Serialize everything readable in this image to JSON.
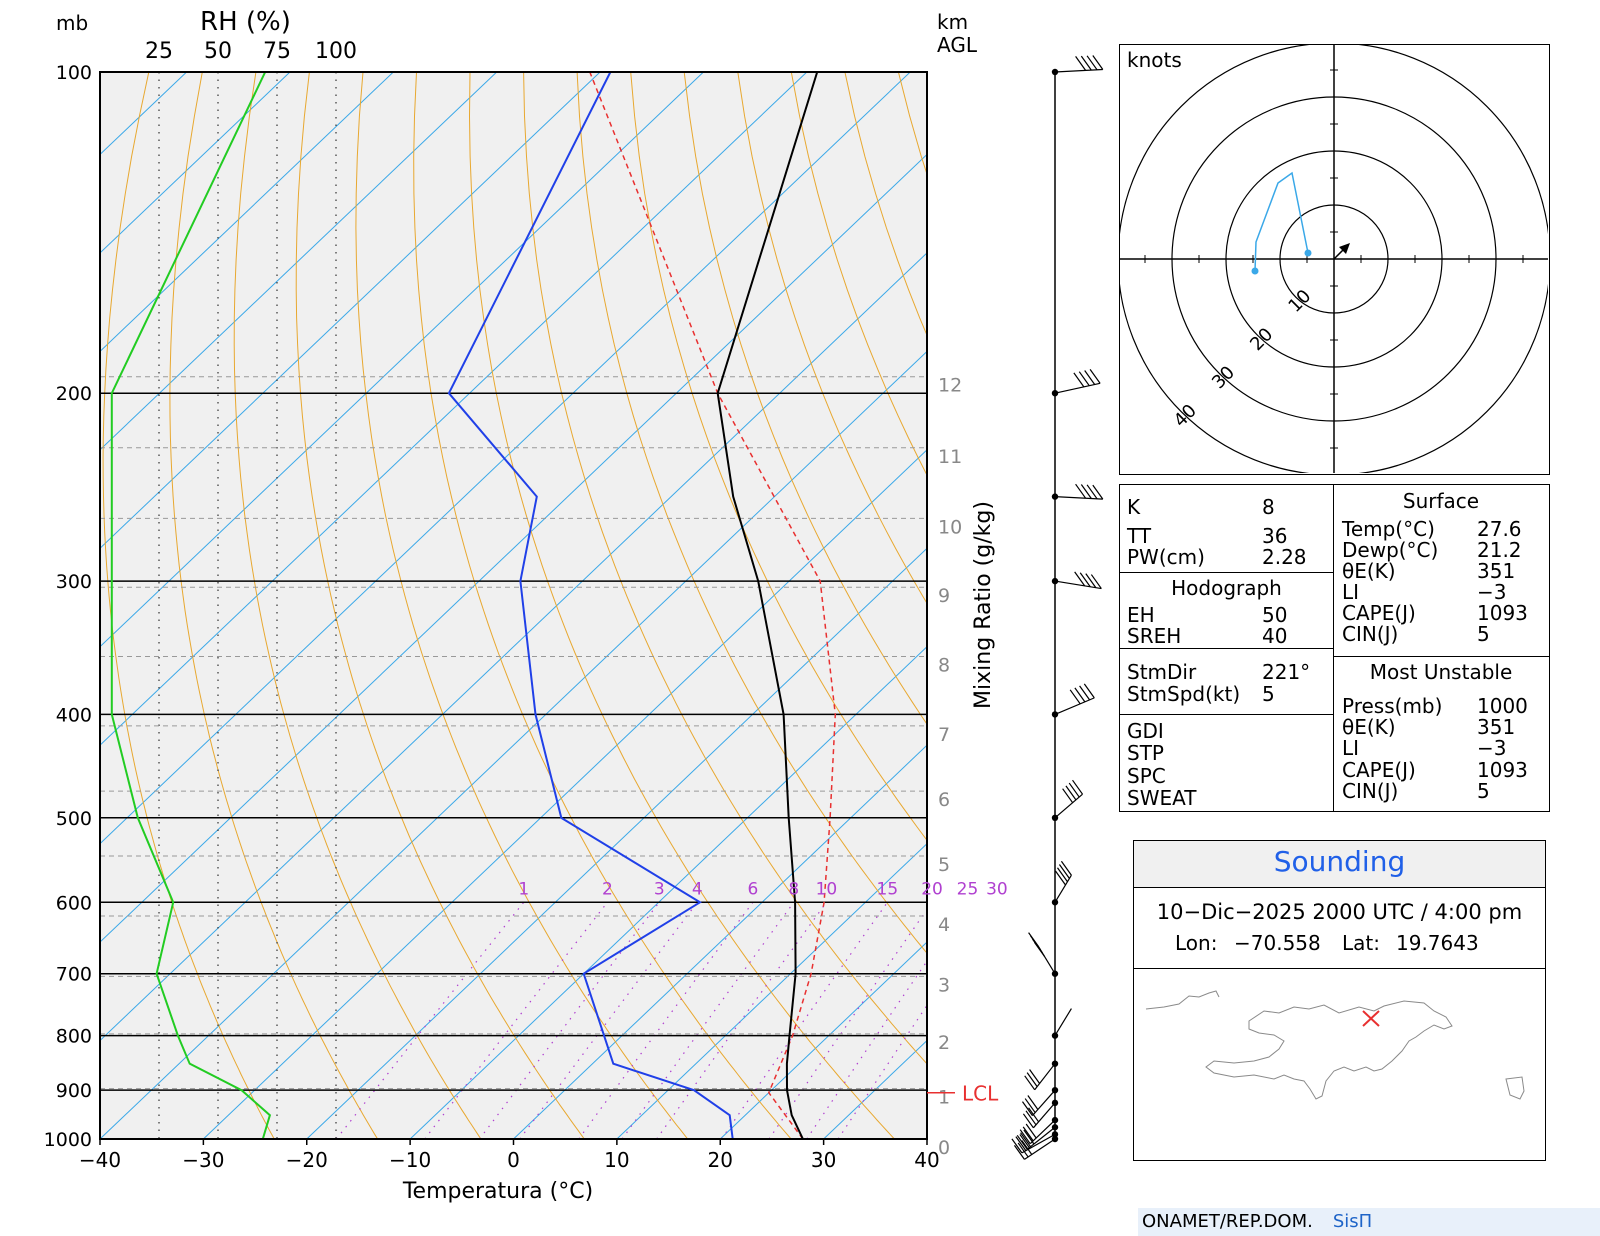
{
  "header": {
    "mb_label": "mb",
    "rh_label": "RH (%)",
    "rh_ticks": [
      "25",
      "50",
      "75",
      "100"
    ],
    "km_label": "km",
    "agl_label": "AGL"
  },
  "chart_data": {
    "type": "skew-t",
    "xlabel": "Temperatura (°C)",
    "y2label": "Mixing Ratio (g/kg)",
    "xlim": [
      -40,
      40
    ],
    "ylim": [
      1000,
      100
    ],
    "temperature_ticks": [
      -40,
      -30,
      -20,
      -10,
      0,
      10,
      20,
      30,
      40
    ],
    "pressure_ticks": [
      100,
      200,
      300,
      400,
      500,
      600,
      700,
      800,
      900,
      1000
    ],
    "height_ticks_km": [
      0,
      1,
      2,
      3,
      4,
      5,
      6,
      7,
      8,
      9,
      10,
      11,
      12
    ],
    "height_pressures": [
      1000,
      897,
      797,
      704,
      618,
      543,
      472,
      410,
      353,
      304,
      262,
      225,
      193
    ],
    "mixing_ratio_lines": [
      "1",
      "2",
      "3",
      "4",
      "6",
      "8",
      "10",
      "15",
      "20",
      "25",
      "30"
    ],
    "lcl": {
      "label": "LCL",
      "pressure": 905
    },
    "temperature_profile": [
      {
        "p": 1000,
        "t": 28.0
      },
      {
        "p": 950,
        "t": 24.5
      },
      {
        "p": 900,
        "t": 21.5
      },
      {
        "p": 850,
        "t": 18.8
      },
      {
        "p": 800,
        "t": 16.2
      },
      {
        "p": 700,
        "t": 10.5
      },
      {
        "p": 600,
        "t": 3.2
      },
      {
        "p": 500,
        "t": -6.0
      },
      {
        "p": 400,
        "t": -17.0
      },
      {
        "p": 300,
        "t": -33.0
      },
      {
        "p": 250,
        "t": -44.0
      },
      {
        "p": 200,
        "t": -56.0
      },
      {
        "p": 100,
        "t": -79.0
      }
    ],
    "dewpoint_profile": [
      {
        "p": 1000,
        "t": 21.2
      },
      {
        "p": 950,
        "t": 18.5
      },
      {
        "p": 900,
        "t": 12.5
      },
      {
        "p": 850,
        "t": 2.0
      },
      {
        "p": 700,
        "t": -10.0
      },
      {
        "p": 600,
        "t": -6.0
      },
      {
        "p": 500,
        "t": -28.0
      },
      {
        "p": 400,
        "t": -41.0
      },
      {
        "p": 300,
        "t": -56.0
      },
      {
        "p": 250,
        "t": -63.0
      },
      {
        "p": 200,
        "t": -82.0
      },
      {
        "p": 100,
        "t": -99.0
      }
    ],
    "parcel_profile": [
      {
        "p": 1000,
        "t": 28.0
      },
      {
        "p": 905,
        "t": 20.0
      },
      {
        "p": 800,
        "t": 16.5
      },
      {
        "p": 700,
        "t": 12.0
      },
      {
        "p": 600,
        "t": 6.0
      },
      {
        "p": 500,
        "t": -2.0
      },
      {
        "p": 400,
        "t": -12.0
      },
      {
        "p": 300,
        "t": -27.0
      },
      {
        "p": 200,
        "t": -56.0
      },
      {
        "p": 100,
        "t": -101.0
      }
    ],
    "rh_profile": [
      {
        "p": 1000,
        "rh": 69
      },
      {
        "p": 950,
        "rh": 72
      },
      {
        "p": 900,
        "rh": 60
      },
      {
        "p": 850,
        "rh": 38
      },
      {
        "p": 800,
        "rh": 33
      },
      {
        "p": 700,
        "rh": 24
      },
      {
        "p": 600,
        "rh": 31
      },
      {
        "p": 500,
        "rh": 16
      },
      {
        "p": 400,
        "rh": 5
      },
      {
        "p": 300,
        "rh": 5
      },
      {
        "p": 200,
        "rh": 5
      },
      {
        "p": 100,
        "rh": 70
      }
    ],
    "wind_barbs_pressure": [
      1000,
      990,
      975,
      960,
      925,
      900,
      850,
      800,
      700,
      600,
      500,
      400,
      300,
      250,
      200,
      100
    ]
  },
  "hodograph": {
    "units_label": "knots",
    "ring_labels": [
      "10",
      "20",
      "30",
      "40"
    ]
  },
  "indices": {
    "k_label": "K",
    "k_value": "8",
    "tt_label": "TT",
    "tt_value": "36",
    "pw_label": "PW(cm)",
    "pw_value": "2.28",
    "hodo_title": "Hodograph",
    "eh_label": "EH",
    "eh_value": "50",
    "sreh_label": "SREH",
    "sreh_value": "40",
    "stmdir_label": "StmDir",
    "stmdir_value": "221°",
    "stmspd_label": "StmSpd(kt)",
    "stmspd_value": "5",
    "gdi_label": "GDI",
    "stp_label": "STP",
    "spc_label": "SPC",
    "sweat_label": "SWEAT"
  },
  "surface": {
    "title": "Surface",
    "temp_label": "Temp(°C)",
    "temp_value": "27.6",
    "dewp_label": "Dewp(°C)",
    "dewp_value": "21.2",
    "thetae_label": "θE(K)",
    "thetae_value": "351",
    "li_label": "LI",
    "li_value": "−3",
    "cape_label": "CAPE(J)",
    "cape_value": "1093",
    "cin_label": "CIN(J)",
    "cin_value": "5"
  },
  "most_unstable": {
    "title": "Most Unstable",
    "press_label": "Press(mb)",
    "press_value": "1000",
    "thetae_label": "θE(K)",
    "thetae_value": "351",
    "li_label": "LI",
    "li_value": "−3",
    "cape_label": "CAPE(J)",
    "cape_value": "1093",
    "cin_label": "CIN(J)",
    "cin_value": "5"
  },
  "sounding": {
    "title": "Sounding",
    "datetime": "10−Dic−2025 2000 UTC / 4:00 pm",
    "lon_label": "Lon:",
    "lon_value": "−70.558",
    "lat_label": "Lat:",
    "lat_value": "19.7643"
  },
  "footer": {
    "org": "ONAMET/REP.DOM.",
    "system": "SisΠ"
  },
  "colors": {
    "temperature": "#000000",
    "dewpoint": "#2040e8",
    "parcel": "#e83030",
    "rh": "#22cc22",
    "isotherm": "#3aa8e8",
    "dry_adiabat": "#e8a830",
    "mixing_ratio": "#b040d0",
    "hodograph": "#3aa8e8",
    "lcl": "#e83030"
  }
}
